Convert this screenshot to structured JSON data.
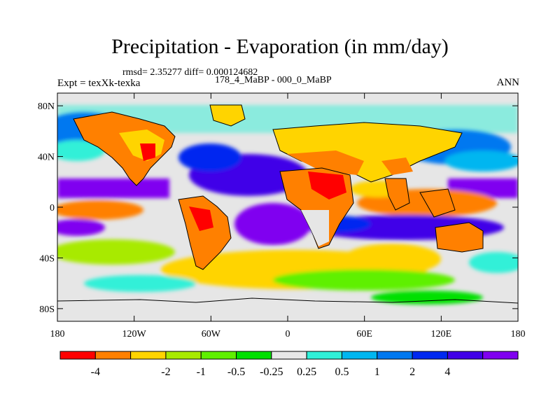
{
  "title": "Precipitation - Evaporation (in mm/day)",
  "stats": "rmsd= 2.35277  diff= 0.000124682",
  "expt_label": "Expt = texXk-texka",
  "subtitle": "178_4_MaBP - 000_0_MaBP",
  "season": "ANN",
  "map": {
    "lat_ticks": [
      "80N",
      "40N",
      "0",
      "40S",
      "80S"
    ],
    "lat_values": [
      80,
      40,
      0,
      -40,
      -80
    ],
    "lon_ticks": [
      "180",
      "120W",
      "60W",
      "0",
      "60E",
      "120E",
      "180"
    ],
    "lon_values": [
      -180,
      -120,
      -60,
      0,
      60,
      120,
      180
    ],
    "lon_range": [
      -180,
      180
    ],
    "lat_range": [
      -90,
      90
    ]
  },
  "colorbar": {
    "colors": [
      "#ff0000",
      "#ff8000",
      "#ffd400",
      "#a8ea00",
      "#5ff000",
      "#00e000",
      "#e8e8e8",
      "#30f0d8",
      "#00b6f0",
      "#0078f0",
      "#0028f0",
      "#4000e8",
      "#8000f0"
    ],
    "labels": [
      "-4",
      "-2",
      "-1",
      "-0.5",
      "-0.25",
      "0.25",
      "0.5",
      "1",
      "2",
      "4"
    ]
  },
  "colors": {
    "neutral": "#e6e6e6",
    "land_outline": "#000000"
  }
}
